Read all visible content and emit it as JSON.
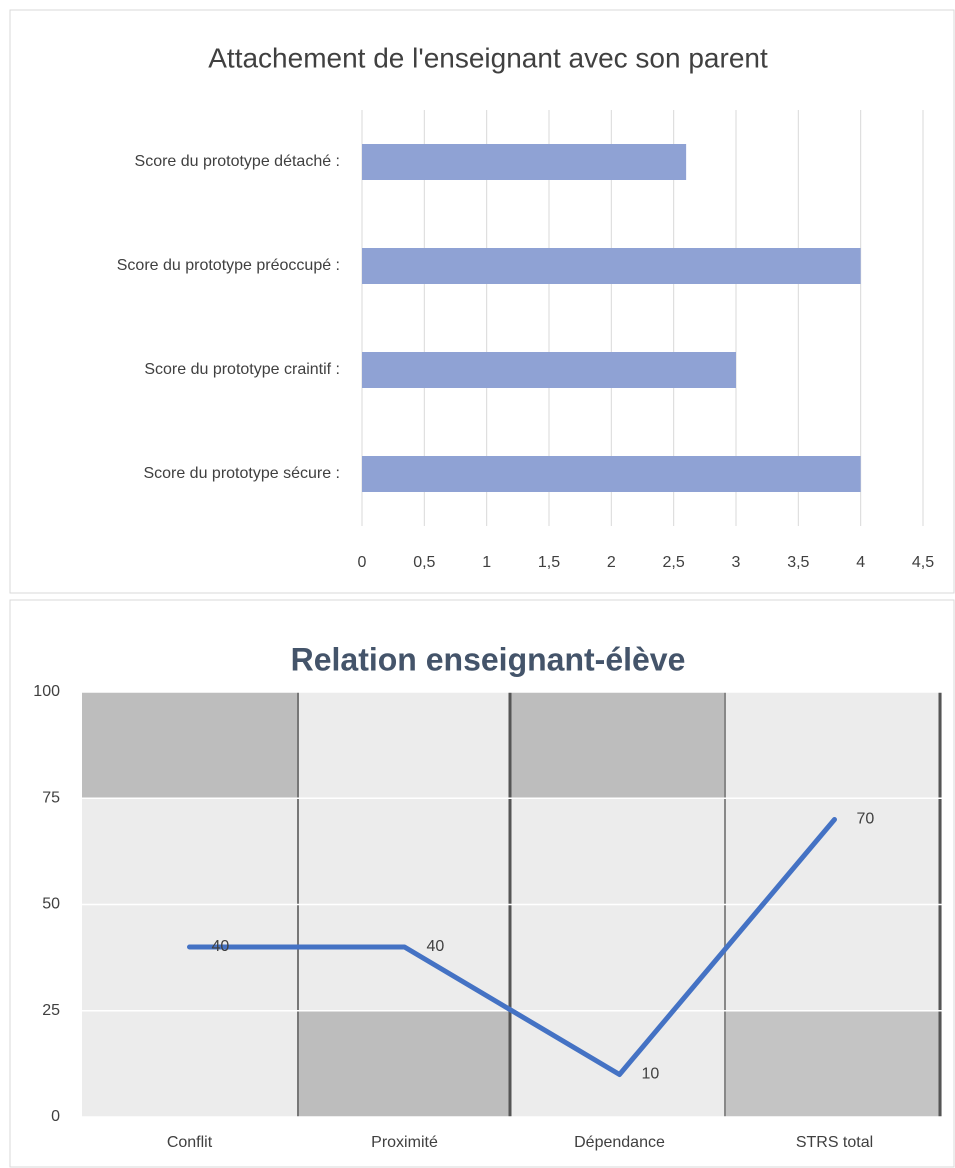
{
  "chart_data": [
    {
      "type": "bar",
      "orientation": "horizontal",
      "title": "Attachement de l'enseignant avec son parent",
      "categories": [
        "Score du prototype détaché :",
        "Score du prototype préoccupé :",
        "Score du prototype craintif :",
        "Score du prototype sécure :"
      ],
      "values": [
        2.6,
        4,
        3,
        4
      ],
      "color": "#8fa2d4",
      "xlim": [
        0,
        4.5
      ],
      "xticks": [
        0,
        {
          "value": 0.5,
          "label": "0,5"
        },
        1,
        {
          "value": 1.5,
          "label": "1,5"
        },
        2,
        {
          "value": 2.5,
          "label": "2,5"
        },
        3,
        {
          "value": 3.5,
          "label": "3,5"
        },
        4,
        {
          "value": 4.5,
          "label": "4,5"
        }
      ],
      "grid": true
    },
    {
      "type": "line",
      "title": "Relation enseignant-élève",
      "categories": [
        "Conflit",
        "Proximité",
        "Dépendance",
        "STRS total"
      ],
      "values": [
        40,
        40,
        10,
        70
      ],
      "color": "#4472c4",
      "ylim": [
        0,
        100
      ],
      "yticks": [
        0,
        25,
        50,
        75,
        100
      ],
      "grid": true
    }
  ]
}
